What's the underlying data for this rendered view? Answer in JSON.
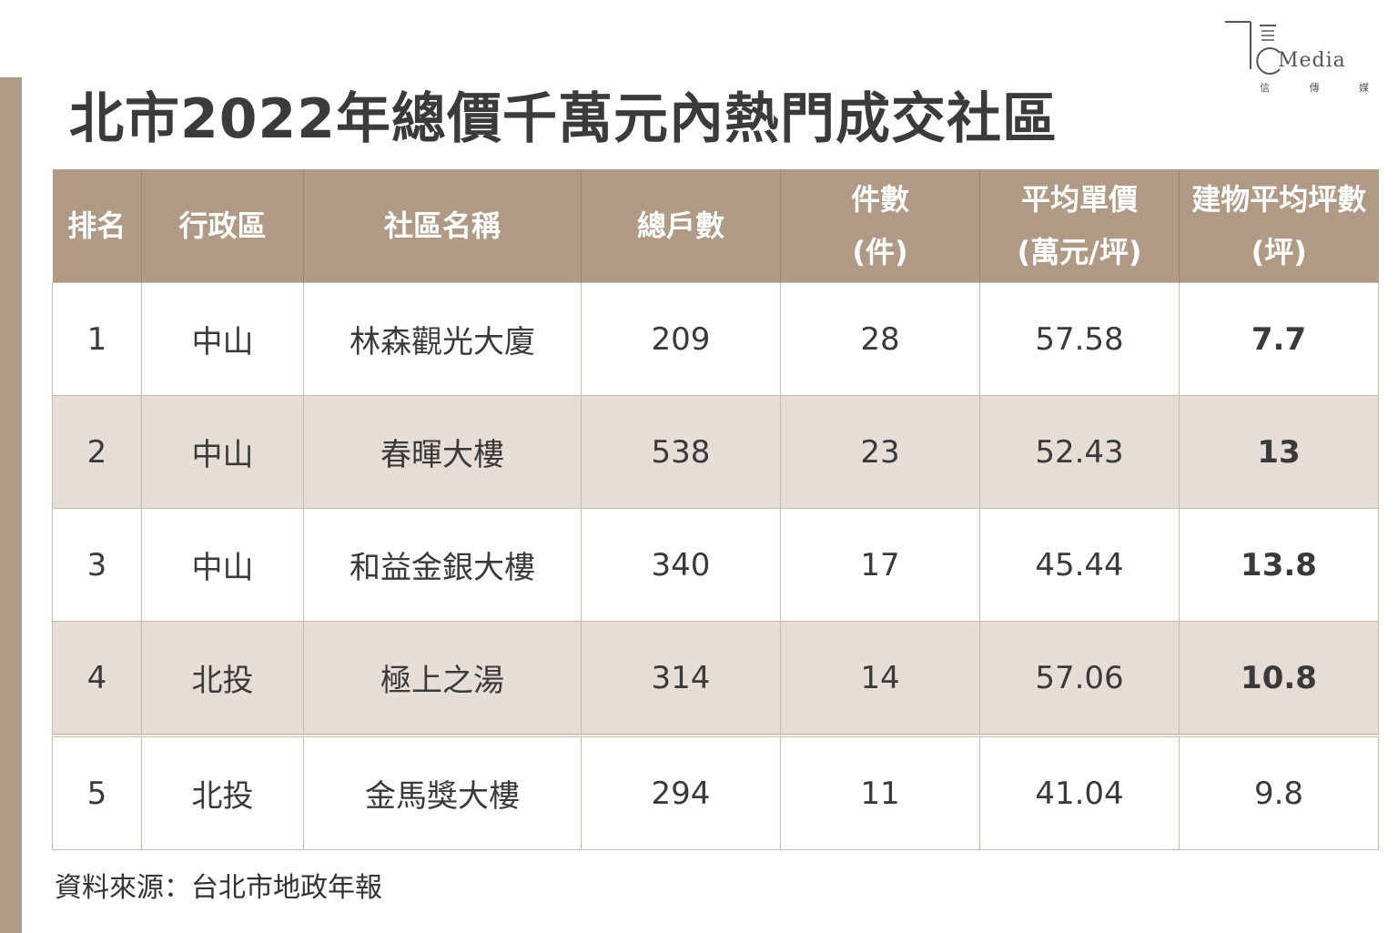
{
  "title": "北市2022年總價千萬元內熱門成交社區",
  "logo": {
    "word": "Media",
    "sub": [
      "信",
      "傳",
      "媒"
    ]
  },
  "table": {
    "headers": [
      {
        "line1": "排名",
        "line2": ""
      },
      {
        "line1": "行政區",
        "line2": ""
      },
      {
        "line1": "社區名稱",
        "line2": ""
      },
      {
        "line1": "總戶數",
        "line2": ""
      },
      {
        "line1": "件數",
        "line2": "(件)"
      },
      {
        "line1": "平均單價",
        "line2": "(萬元/坪)"
      },
      {
        "line1": "建物平均坪數",
        "line2": "(坪)"
      }
    ],
    "rows": [
      [
        "1",
        "中山",
        "林森觀光大廈",
        "209",
        "28",
        "57.58",
        "7.7"
      ],
      [
        "2",
        "中山",
        "春暉大樓",
        "538",
        "23",
        "52.43",
        "13"
      ],
      [
        "3",
        "中山",
        "和益金銀大樓",
        "340",
        "17",
        "45.44",
        "13.8"
      ],
      [
        "4",
        "北投",
        "極上之湯",
        "314",
        "14",
        "57.06",
        "10.8"
      ],
      [
        "5",
        "北投",
        "金馬獎大樓",
        "294",
        "11",
        "41.04",
        "9.8"
      ]
    ]
  },
  "source": "資料來源：台北市地政年報",
  "colors": {
    "accent": "#b09a85",
    "row_shade": "#e6ddd6"
  }
}
